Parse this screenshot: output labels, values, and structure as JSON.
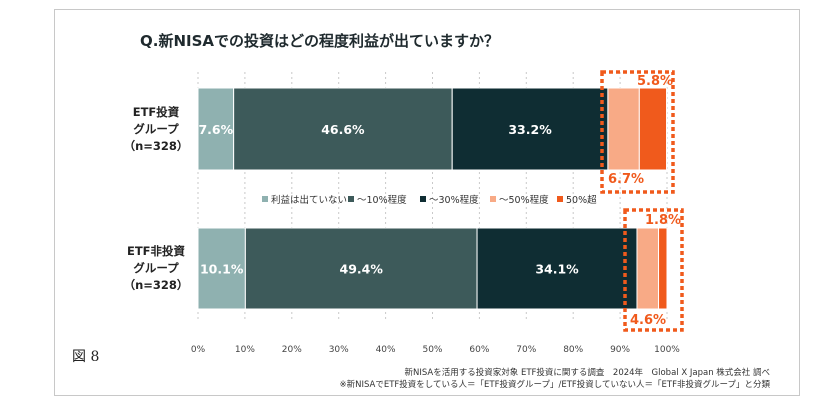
{
  "figure_label": "図 8",
  "notes": [
    "新NISAを活用する投資家対象 ETF投資に関する調査　2024年　Global X Japan 株式会社 調べ",
    "※新NISAでETF投資をしている人＝「ETF投資グループ」/ETF投資していない人＝「ETF非投資グループ」と分類"
  ],
  "row_labels": [
    [
      "ETF投資",
      "グループ",
      "（n=328）"
    ],
    [
      "ETF非投資",
      "グループ",
      "（n=328）"
    ]
  ],
  "colors": {
    "none": "#8fb1b0",
    "to10": "#3d5a5a",
    "to30": "#0f2d33",
    "to50": "#f8aa86",
    "over50": "#f05a1c",
    "highlight": "#f05a1c",
    "value_label_light": "#ffffff",
    "value_label_accent": "#f05a1c"
  },
  "chart_data": {
    "type": "bar",
    "orientation": "horizontal",
    "stacked": true,
    "title": "Q.新NISAでの投資はどの程度利益が出ていますか？",
    "categories": [
      "ETF投資グループ（n=328）",
      "ETF非投資グループ（n=328）"
    ],
    "series": [
      {
        "name": "利益は出ていない",
        "key": "none",
        "values": [
          7.6,
          10.1
        ],
        "labels": [
          "7.6%",
          "10.1%"
        ]
      },
      {
        "name": "～10%程度",
        "key": "to10",
        "values": [
          46.6,
          49.4
        ],
        "labels": [
          "46.6%",
          "49.4%"
        ]
      },
      {
        "name": "～30%程度",
        "key": "to30",
        "values": [
          33.2,
          34.1
        ],
        "labels": [
          "33.2%",
          "34.1%"
        ]
      },
      {
        "name": "～50%程度",
        "key": "to50",
        "values": [
          6.7,
          4.6
        ],
        "labels": [
          "6.7%",
          "4.6%"
        ]
      },
      {
        "name": "50%超",
        "key": "over50",
        "values": [
          5.8,
          1.8
        ],
        "labels": [
          "5.8%",
          "1.8%"
        ]
      }
    ],
    "xlim": [
      0,
      100
    ],
    "xticks": [
      0,
      10,
      20,
      30,
      40,
      50,
      60,
      70,
      80,
      90,
      100
    ],
    "xtick_labels": [
      "0%",
      "10%",
      "20%",
      "30%",
      "40%",
      "50%",
      "60%",
      "70%",
      "80%",
      "90%",
      "100%"
    ],
    "grid": "vertical dotted",
    "legend_position": "between-bars",
    "highlight": "dotted box around ～50%程度 and 50%超 segments"
  }
}
